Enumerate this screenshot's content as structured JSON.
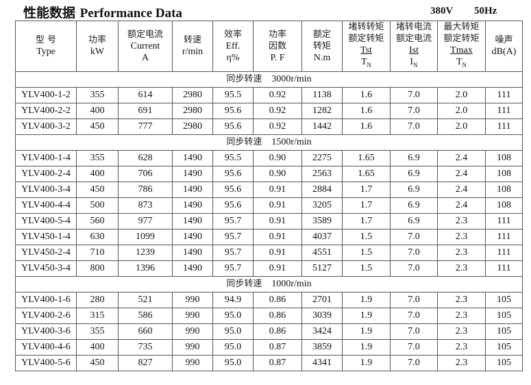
{
  "title_cn": "性能数据",
  "title_en": "Performance Data",
  "voltage": "380V",
  "frequency": "50Hz",
  "headers": [
    {
      "cn": "型 号",
      "en": "Type"
    },
    {
      "cn": "功率",
      "en": "kW"
    },
    {
      "cn": "额定电流",
      "en": "Current",
      "unit": "A"
    },
    {
      "cn": "转速",
      "en": "r/min"
    },
    {
      "cn": "效率",
      "en": "Eff.",
      "unit": "η%"
    },
    {
      "cn": "功率",
      "cn2": "因数",
      "en": "P. F"
    },
    {
      "cn": "额定",
      "cn2": "转矩",
      "en": "N.m"
    },
    {
      "cn": "堵转转矩",
      "cn2": "额定转矩",
      "num": "Tst",
      "den": "T",
      "den_sub": "N"
    },
    {
      "cn": "堵转电流",
      "cn2": "额定电流",
      "num": "Ist",
      "den": "I",
      "den_sub": "N"
    },
    {
      "cn": "最大转矩",
      "cn2": "额定转矩",
      "num": "Tmax",
      "den": "T",
      "den_sub": "N"
    },
    {
      "cn": "噪声",
      "en": "dB(A)"
    }
  ],
  "groups": [
    {
      "label_cn": "同步转速",
      "label_speed": "3000r/min",
      "rows": [
        [
          "YLV400-1-2",
          "355",
          "614",
          "2980",
          "95.5",
          "0.92",
          "1138",
          "1.6",
          "7.0",
          "2.0",
          "111"
        ],
        [
          "YLV400-2-2",
          "400",
          "691",
          "2980",
          "95.6",
          "0.92",
          "1282",
          "1.6",
          "7.0",
          "2.0",
          "111"
        ],
        [
          "YLV400-3-2",
          "450",
          "777",
          "2980",
          "95.6",
          "0.92",
          "1442",
          "1.6",
          "7.0",
          "2.0",
          "111"
        ]
      ]
    },
    {
      "label_cn": "同步转速",
      "label_speed": "1500r/min",
      "rows": [
        [
          "YLV400-1-4",
          "355",
          "628",
          "1490",
          "95.5",
          "0.90",
          "2275",
          "1.65",
          "6.9",
          "2.4",
          "108"
        ],
        [
          "YLV400-2-4",
          "400",
          "706",
          "1490",
          "95.6",
          "0.90",
          "2563",
          "1.65",
          "6.9",
          "2.4",
          "108"
        ],
        [
          "YLV400-3-4",
          "450",
          "786",
          "1490",
          "95.6",
          "0.91",
          "2884",
          "1.7",
          "6.9",
          "2.4",
          "108"
        ],
        [
          "YLV400-4-4",
          "500",
          "873",
          "1490",
          "95.6",
          "0.91",
          "3205",
          "1.7",
          "6.9",
          "2.4",
          "108"
        ],
        [
          "YLV400-5-4",
          "560",
          "977",
          "1490",
          "95.7",
          "0.91",
          "3589",
          "1.7",
          "6.9",
          "2.3",
          "111"
        ],
        [
          "YLV450-1-4",
          "630",
          "1099",
          "1490",
          "95.7",
          "0.91",
          "4037",
          "1.5",
          "7.0",
          "2.3",
          "111"
        ],
        [
          "YLV450-2-4",
          "710",
          "1239",
          "1490",
          "95.7",
          "0.91",
          "4551",
          "1.5",
          "7.0",
          "2.3",
          "111"
        ],
        [
          "YLV450-3-4",
          "800",
          "1396",
          "1490",
          "95.7",
          "0.91",
          "5127",
          "1.5",
          "7.0",
          "2.3",
          "111"
        ]
      ]
    },
    {
      "label_cn": "同步转速",
      "label_speed": "1000r/min",
      "rows": [
        [
          "YLV400-1-6",
          "280",
          "521",
          "990",
          "94.9",
          "0.86",
          "2701",
          "1.9",
          "7.0",
          "2.3",
          "105"
        ],
        [
          "YLV400-2-6",
          "315",
          "586",
          "990",
          "95.0",
          "0.86",
          "3039",
          "1.9",
          "7.0",
          "2.3",
          "105"
        ],
        [
          "YLV400-3-6",
          "355",
          "660",
          "990",
          "95.0",
          "0.86",
          "3424",
          "1.9",
          "7.0",
          "2.3",
          "105"
        ],
        [
          "YLV400-4-6",
          "400",
          "735",
          "990",
          "95.0",
          "0.87",
          "3859",
          "1.9",
          "7.0",
          "2.3",
          "105"
        ],
        [
          "YLV400-5-6",
          "450",
          "827",
          "990",
          "95.0",
          "0.87",
          "4341",
          "1.9",
          "7.0",
          "2.3",
          "105"
        ]
      ]
    }
  ]
}
